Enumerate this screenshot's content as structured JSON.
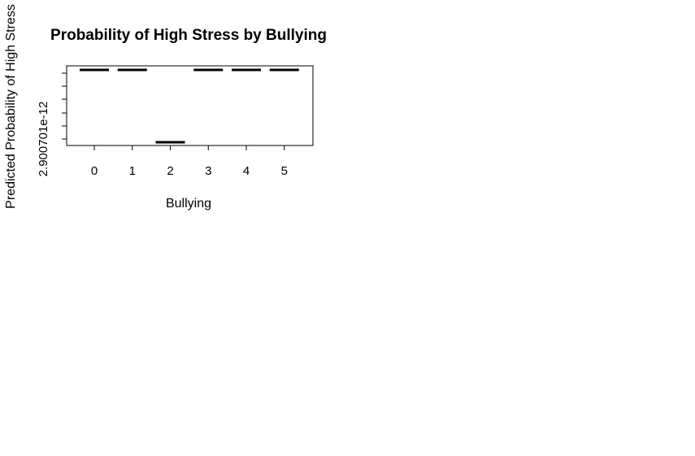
{
  "chart_data": {
    "type": "bar",
    "title": "Probability of High Stress by Bullying",
    "xlabel": "Bullying",
    "ylabel": "Predicted Probability of High Stress",
    "y_tick_label": "2.900701e-12",
    "categories": [
      "0",
      "1",
      "2",
      "3",
      "4",
      "5"
    ],
    "levels": [
      1,
      1,
      0,
      1,
      1,
      1
    ],
    "level_note_low": "lower",
    "grid": false,
    "legend": "none"
  }
}
